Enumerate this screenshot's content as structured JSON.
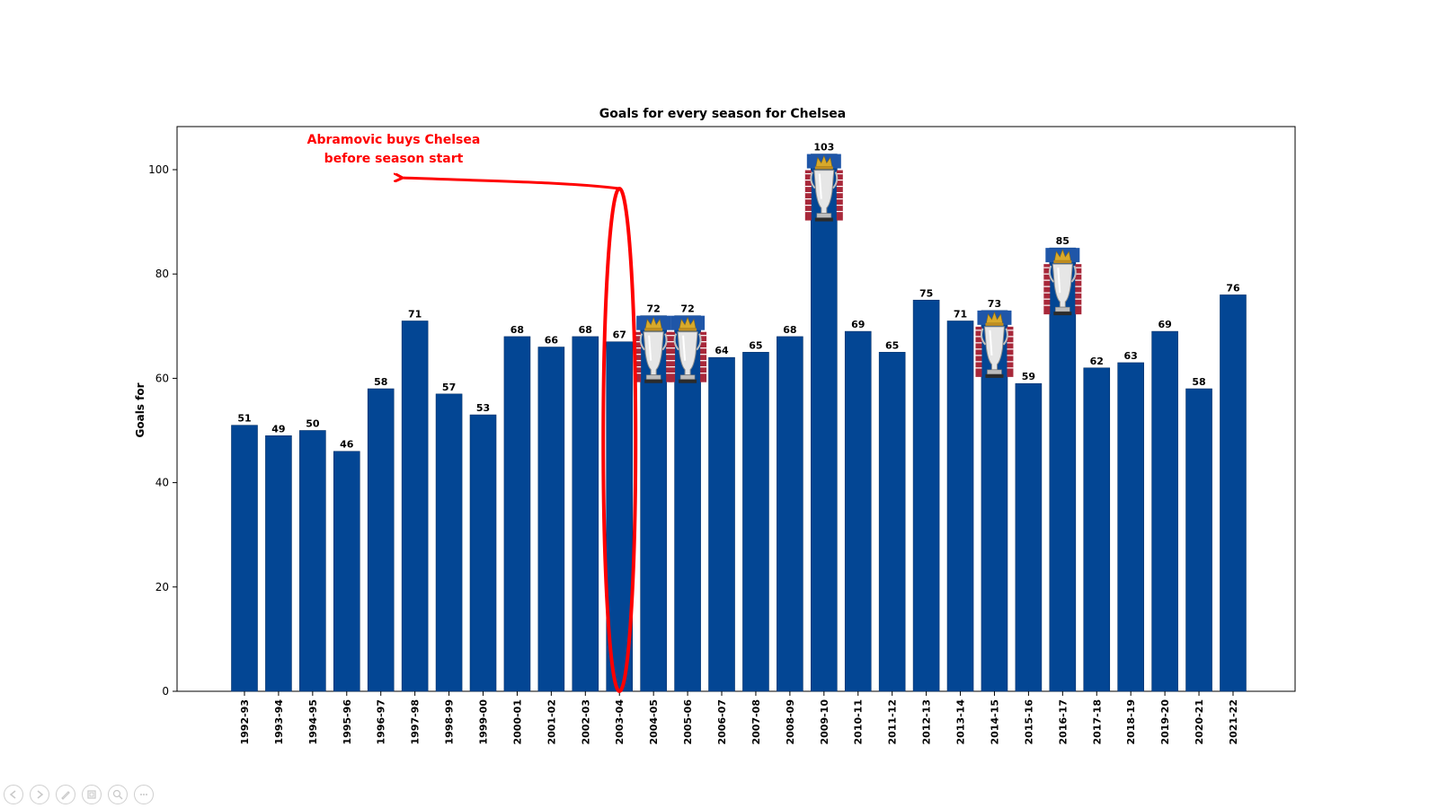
{
  "chart_data": {
    "type": "bar",
    "title": "Goals for every season for Chelsea",
    "xlabel": "",
    "ylabel": "Goals for",
    "ylim": [
      0,
      108
    ],
    "yticks": [
      0,
      20,
      40,
      60,
      80,
      100
    ],
    "grid": false,
    "categories": [
      "1992-93",
      "1993-94",
      "1994-95",
      "1995-96",
      "1996-97",
      "1997-98",
      "1998-99",
      "1999-00",
      "2000-01",
      "2001-02",
      "2002-03",
      "2003-04",
      "2004-05",
      "2005-06",
      "2006-07",
      "2007-08",
      "2008-09",
      "2009-10",
      "2010-11",
      "2011-12",
      "2012-13",
      "2013-14",
      "2014-15",
      "2015-16",
      "2016-17",
      "2017-18",
      "2018-19",
      "2019-20",
      "2020-21",
      "2021-22"
    ],
    "values": [
      51,
      49,
      50,
      46,
      58,
      71,
      57,
      53,
      68,
      66,
      68,
      67,
      72,
      72,
      64,
      65,
      68,
      103,
      69,
      65,
      75,
      71,
      73,
      59,
      85,
      62,
      63,
      69,
      58,
      76
    ],
    "bar_color": "#034694",
    "title_winning_seasons": [
      "2004-05",
      "2005-06",
      "2009-10",
      "2014-15",
      "2016-17"
    ],
    "annotation": {
      "text_line1": "Abramovic buys Chelsea",
      "text_line2": "before season start",
      "target_category": "2003-04",
      "color": "#ff0000"
    }
  },
  "icons": {
    "trophy": "premier-league-trophy-icon"
  },
  "controls": [
    "back-icon",
    "forward-icon",
    "pen-icon",
    "slides-icon",
    "zoom-icon",
    "more-icon"
  ]
}
